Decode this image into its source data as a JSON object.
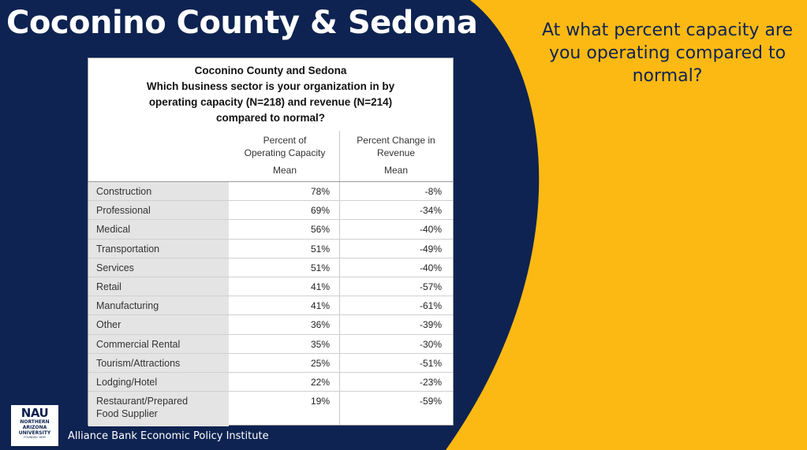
{
  "slide": {
    "title": "Coconino County & Sedona",
    "question": "At what percent capacity are you operating compared to normal?",
    "footer": "Alliance Bank Economic Policy Institute",
    "colors": {
      "navy": "#0E2351",
      "gold": "#FDB913"
    }
  },
  "logo": {
    "text": "NAU",
    "line1": "NORTHERN",
    "line2": "ARIZONA",
    "line3": "UNIVERSITY",
    "line4": "FOUNDED 1899"
  },
  "table": {
    "title_line1": "Coconino County and Sedona",
    "title_line2": "Which business sector is your organization in by",
    "title_line3": "operating capacity (N=218) and revenue (N=214)",
    "title_line4": "compared to normal?",
    "col1_header_1": "Percent of",
    "col1_header_2": "Operating Capacity",
    "col2_header_1": "Percent Change in",
    "col2_header_2": "Revenue",
    "stat_label": "Mean",
    "rows": [
      {
        "sector": "Construction",
        "capacity": "78%",
        "revenue": "-8%"
      },
      {
        "sector": "Professional",
        "capacity": "69%",
        "revenue": "-34%"
      },
      {
        "sector": "Medical",
        "capacity": "56%",
        "revenue": "-40%"
      },
      {
        "sector": "Transportation",
        "capacity": "51%",
        "revenue": "-49%"
      },
      {
        "sector": "Services",
        "capacity": "51%",
        "revenue": "-40%"
      },
      {
        "sector": "Retail",
        "capacity": "41%",
        "revenue": "-57%"
      },
      {
        "sector": "Manufacturing",
        "capacity": "41%",
        "revenue": "-61%"
      },
      {
        "sector": "Other",
        "capacity": "36%",
        "revenue": "-39%"
      },
      {
        "sector": "Commercial Rental",
        "capacity": "35%",
        "revenue": "-30%"
      },
      {
        "sector": "Tourism/Attractions",
        "capacity": "25%",
        "revenue": "-51%"
      },
      {
        "sector": "Lodging/Hotel",
        "capacity": "22%",
        "revenue": "-23%"
      },
      {
        "sector_line1": "Restaurant/Prepared",
        "sector_line2": "Food Supplier",
        "capacity": "19%",
        "revenue": "-59%"
      }
    ]
  }
}
